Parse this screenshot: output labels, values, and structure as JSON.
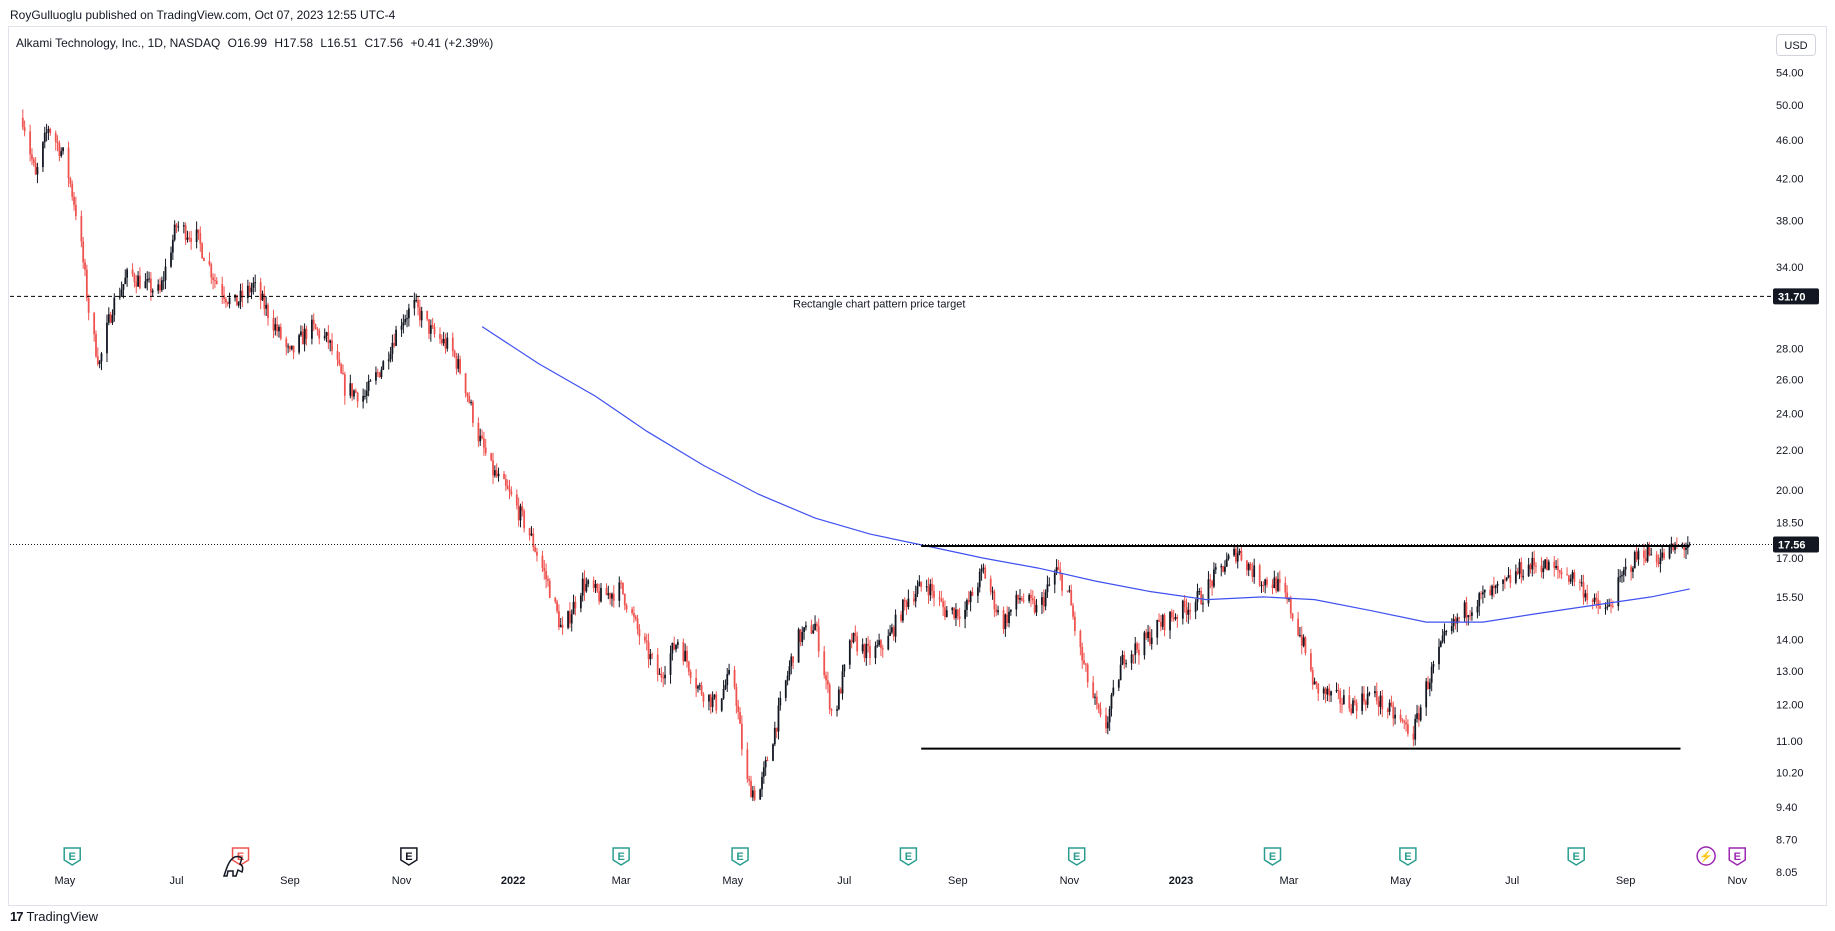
{
  "header": {
    "published": "RoyGulluoglu published on TradingView.com, Oct 07, 2023 12:55 UTC-4"
  },
  "legend": {
    "symbol": "Alkami Technology, Inc., 1D, NASDAQ",
    "open": "O16.99",
    "high": "H17.58",
    "low": "L16.51",
    "close": "C17.56",
    "change": "+0.41 (+2.39%)"
  },
  "currency_button": "USD",
  "footer": {
    "brand": "TradingView",
    "logo": "17"
  },
  "colors": {
    "up": "#26a69a",
    "down": "#ef5350",
    "candle_up": "#131722",
    "candle_down": "#ef5350",
    "ma": "#3f51f0",
    "level": "#000000",
    "earnings": "#2a9d8f",
    "earnings_red": "#ef5350"
  },
  "chart_data": {
    "type": "candlestick",
    "title": "",
    "y_scale": "log",
    "ylim": [
      7.9,
      57
    ],
    "xlim": [
      "2021-04-01",
      "2023-11-20"
    ],
    "y_ticks": [
      "54.00",
      "50.00",
      "46.00",
      "42.00",
      "38.00",
      "34.00",
      "28.00",
      "26.00",
      "24.00",
      "22.00",
      "20.00",
      "18.50",
      "17.00",
      "15.50",
      "14.00",
      "13.00",
      "12.00",
      "11.00",
      "10.20",
      "9.40",
      "8.70",
      "8.05"
    ],
    "x_ticks": [
      {
        "label": "May",
        "date": "2021-05-01"
      },
      {
        "label": "Jul",
        "date": "2021-07-01"
      },
      {
        "label": "Sep",
        "date": "2021-09-01"
      },
      {
        "label": "Nov",
        "date": "2021-11-01"
      },
      {
        "label": "2022",
        "date": "2022-01-01",
        "bold": true
      },
      {
        "label": "Mar",
        "date": "2022-03-01"
      },
      {
        "label": "May",
        "date": "2022-05-01"
      },
      {
        "label": "Jul",
        "date": "2022-07-01"
      },
      {
        "label": "Sep",
        "date": "2022-09-01"
      },
      {
        "label": "Nov",
        "date": "2022-11-01"
      },
      {
        "label": "2023",
        "date": "2023-01-01",
        "bold": true
      },
      {
        "label": "Mar",
        "date": "2023-03-01"
      },
      {
        "label": "May",
        "date": "2023-05-01"
      },
      {
        "label": "Jul",
        "date": "2023-07-01"
      },
      {
        "label": "Sep",
        "date": "2023-09-01"
      },
      {
        "label": "Nov",
        "date": "2023-11-01"
      }
    ],
    "price_path": [
      [
        "2021-04-08",
        48.5
      ],
      [
        "2021-04-15",
        42.0
      ],
      [
        "2021-04-22",
        47.5
      ],
      [
        "2021-05-01",
        44.0
      ],
      [
        "2021-05-08",
        38.0
      ],
      [
        "2021-05-15",
        29.5
      ],
      [
        "2021-05-20",
        27.0
      ],
      [
        "2021-05-27",
        31.0
      ],
      [
        "2021-06-05",
        33.5
      ],
      [
        "2021-06-15",
        32.5
      ],
      [
        "2021-06-22",
        32.0
      ],
      [
        "2021-07-01",
        37.5
      ],
      [
        "2021-07-12",
        36.5
      ],
      [
        "2021-07-22",
        33.0
      ],
      [
        "2021-08-01",
        31.0
      ],
      [
        "2021-08-12",
        32.5
      ],
      [
        "2021-08-22",
        30.0
      ],
      [
        "2021-09-01",
        27.5
      ],
      [
        "2021-09-12",
        29.5
      ],
      [
        "2021-09-22",
        28.5
      ],
      [
        "2021-10-01",
        25.5
      ],
      [
        "2021-10-12",
        25.0
      ],
      [
        "2021-10-22",
        27.0
      ],
      [
        "2021-11-01",
        30.0
      ],
      [
        "2021-11-08",
        31.0
      ],
      [
        "2021-11-18",
        29.0
      ],
      [
        "2021-11-28",
        28.0
      ],
      [
        "2021-12-05",
        26.0
      ],
      [
        "2021-12-12",
        23.0
      ],
      [
        "2021-12-20",
        21.0
      ],
      [
        "2022-01-01",
        19.5
      ],
      [
        "2022-01-10",
        18.0
      ],
      [
        "2022-01-20",
        16.0
      ],
      [
        "2022-01-28",
        14.2
      ],
      [
        "2022-02-08",
        16.0
      ],
      [
        "2022-02-18",
        15.5
      ],
      [
        "2022-03-01",
        15.8
      ],
      [
        "2022-03-12",
        14.0
      ],
      [
        "2022-03-22",
        12.8
      ],
      [
        "2022-04-01",
        14.0
      ],
      [
        "2022-04-12",
        12.5
      ],
      [
        "2022-04-22",
        12.0
      ],
      [
        "2022-05-01",
        13.0
      ],
      [
        "2022-05-08",
        10.0
      ],
      [
        "2022-05-15",
        9.6
      ],
      [
        "2022-05-25",
        11.5
      ],
      [
        "2022-06-05",
        14.0
      ],
      [
        "2022-06-15",
        14.5
      ],
      [
        "2022-06-25",
        11.5
      ],
      [
        "2022-07-05",
        14.0
      ],
      [
        "2022-07-15",
        13.5
      ],
      [
        "2022-07-25",
        14.0
      ],
      [
        "2022-08-05",
        15.5
      ],
      [
        "2022-08-15",
        16.0
      ],
      [
        "2022-08-25",
        15.0
      ],
      [
        "2022-09-05",
        15.0
      ],
      [
        "2022-09-15",
        16.5
      ],
      [
        "2022-09-25",
        14.5
      ],
      [
        "2022-10-05",
        15.5
      ],
      [
        "2022-10-15",
        15.0
      ],
      [
        "2022-10-25",
        16.5
      ],
      [
        "2022-11-01",
        15.5
      ],
      [
        "2022-11-05",
        14.0
      ],
      [
        "2022-11-12",
        12.5
      ],
      [
        "2022-11-20",
        11.2
      ],
      [
        "2022-12-01",
        13.5
      ],
      [
        "2022-12-10",
        13.8
      ],
      [
        "2022-12-20",
        14.5
      ],
      [
        "2023-01-01",
        15.0
      ],
      [
        "2023-01-12",
        15.5
      ],
      [
        "2023-01-22",
        16.5
      ],
      [
        "2023-02-01",
        17.3
      ],
      [
        "2023-02-12",
        16.2
      ],
      [
        "2023-02-22",
        16.0
      ],
      [
        "2023-03-01",
        15.2
      ],
      [
        "2023-03-08",
        14.0
      ],
      [
        "2023-03-15",
        12.5
      ],
      [
        "2023-03-25",
        12.2
      ],
      [
        "2023-04-05",
        12.0
      ],
      [
        "2023-04-15",
        12.3
      ],
      [
        "2023-04-25",
        11.8
      ],
      [
        "2023-05-01",
        11.5
      ],
      [
        "2023-05-08",
        11.2
      ],
      [
        "2023-05-15",
        12.5
      ],
      [
        "2023-05-25",
        14.0
      ],
      [
        "2023-06-05",
        15.0
      ],
      [
        "2023-06-15",
        15.5
      ],
      [
        "2023-06-25",
        15.8
      ],
      [
        "2023-07-05",
        16.5
      ],
      [
        "2023-07-15",
        16.8
      ],
      [
        "2023-07-25",
        16.5
      ],
      [
        "2023-08-05",
        16.2
      ],
      [
        "2023-08-15",
        15.2
      ],
      [
        "2023-08-22",
        15.0
      ],
      [
        "2023-09-01",
        16.5
      ],
      [
        "2023-09-10",
        17.3
      ],
      [
        "2023-09-20",
        17.0
      ],
      [
        "2023-09-28",
        17.4
      ],
      [
        "2023-10-06",
        17.56
      ]
    ],
    "moving_average": [
      [
        "2021-12-15",
        29.5
      ],
      [
        "2022-01-15",
        27.0
      ],
      [
        "2022-02-15",
        25.0
      ],
      [
        "2022-03-15",
        23.0
      ],
      [
        "2022-04-15",
        21.2
      ],
      [
        "2022-05-15",
        19.8
      ],
      [
        "2022-06-15",
        18.7
      ],
      [
        "2022-07-15",
        18.0
      ],
      [
        "2022-08-15",
        17.5
      ],
      [
        "2022-09-15",
        17.0
      ],
      [
        "2022-10-15",
        16.6
      ],
      [
        "2022-11-15",
        16.1
      ],
      [
        "2022-12-15",
        15.7
      ],
      [
        "2023-01-15",
        15.4
      ],
      [
        "2023-02-15",
        15.5
      ],
      [
        "2023-03-15",
        15.4
      ],
      [
        "2023-04-15",
        15.0
      ],
      [
        "2023-05-15",
        14.6
      ],
      [
        "2023-06-15",
        14.6
      ],
      [
        "2023-07-15",
        14.9
      ],
      [
        "2023-08-15",
        15.2
      ],
      [
        "2023-09-15",
        15.5
      ],
      [
        "2023-10-06",
        15.8
      ]
    ],
    "horizontal_lines": [
      {
        "name": "price-target-line",
        "price": 31.7,
        "style": "dashed",
        "label": "Rectangle chart pattern price target",
        "axis_label": "31.70",
        "x_from": "2021-04-01",
        "x_to": "2023-11-20"
      },
      {
        "name": "resistance-line",
        "price": 17.5,
        "style": "solid",
        "x_from": "2022-08-12",
        "x_to": "2023-10-06"
      },
      {
        "name": "support-line",
        "price": 10.8,
        "style": "solid",
        "x_from": "2022-08-12",
        "x_to": "2023-10-01"
      }
    ],
    "last_price": {
      "price": 17.56,
      "label": "17.56"
    },
    "earnings_markers": [
      {
        "date": "2021-05-05",
        "type": "E",
        "color": "green"
      },
      {
        "date": "2021-08-05",
        "type": "E",
        "color": "red"
      },
      {
        "date": "2021-11-05",
        "type": "E",
        "color": "dark"
      },
      {
        "date": "2022-03-01",
        "type": "E",
        "color": "green"
      },
      {
        "date": "2022-05-05",
        "type": "E",
        "color": "green"
      },
      {
        "date": "2022-08-05",
        "type": "E",
        "color": "green"
      },
      {
        "date": "2022-11-05",
        "type": "E",
        "color": "green"
      },
      {
        "date": "2023-02-20",
        "type": "E",
        "color": "green"
      },
      {
        "date": "2023-05-05",
        "type": "E",
        "color": "green"
      },
      {
        "date": "2023-08-05",
        "type": "E",
        "color": "green"
      },
      {
        "date": "2023-10-15",
        "type": "⚡",
        "color": "purple"
      },
      {
        "date": "2023-11-01",
        "type": "E",
        "color": "purple"
      }
    ]
  }
}
